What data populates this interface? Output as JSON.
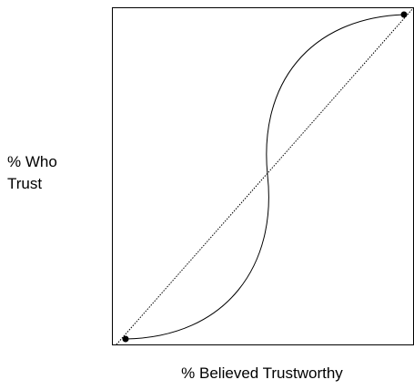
{
  "axis_labels": {
    "y": [
      "% Who",
      "Trust"
    ],
    "x": "% Believed Trustworthy"
  }
}
